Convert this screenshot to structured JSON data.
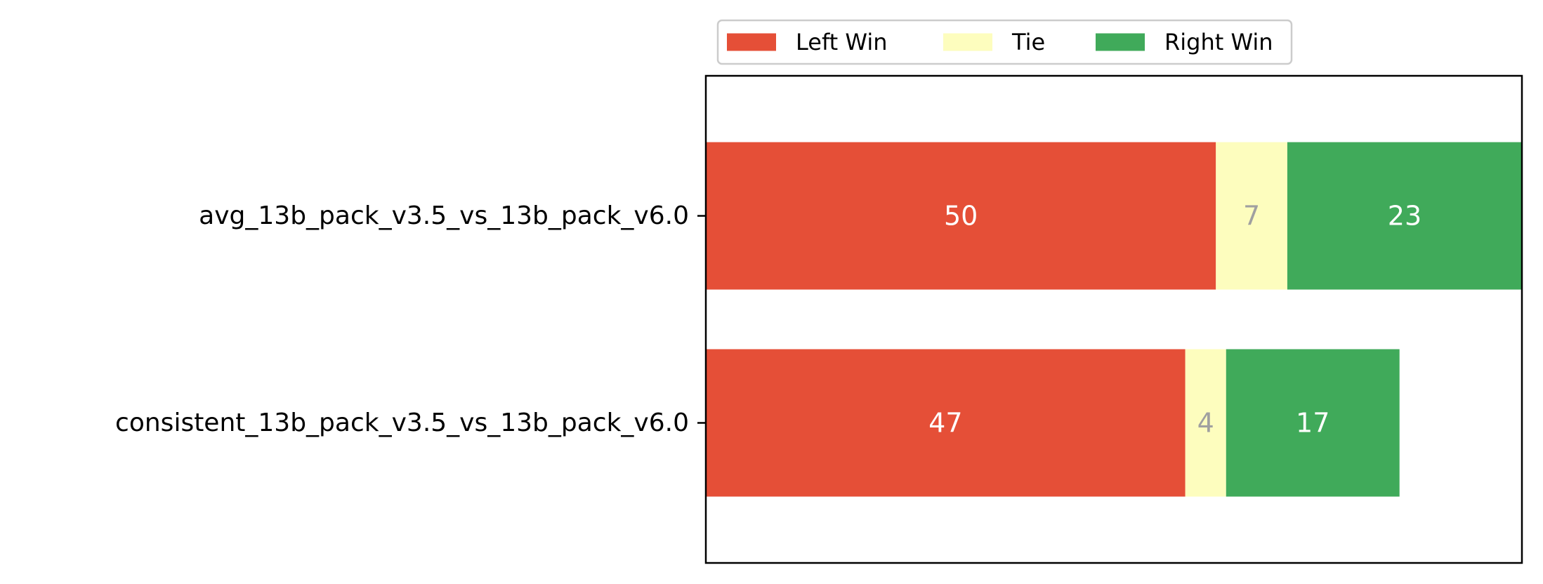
{
  "chart_data": {
    "type": "bar",
    "orientation": "horizontal",
    "stacked": true,
    "categories": [
      "avg_13b_pack_v3.5_vs_13b_pack_v6.0",
      "consistent_13b_pack_v3.5_vs_13b_pack_v6.0"
    ],
    "series": [
      {
        "name": "Left Win",
        "color": "#e54f37",
        "label_color": "#ffffff",
        "values": [
          50,
          47
        ]
      },
      {
        "name": "Tie",
        "color": "#fdfdbe",
        "label_color": "#a0a0a0",
        "values": [
          7,
          4
        ]
      },
      {
        "name": "Right Win",
        "color": "#40aa5a",
        "label_color": "#ffffff",
        "values": [
          23,
          17
        ]
      }
    ],
    "xlim": [
      0,
      80
    ],
    "x_ticks_visible": false,
    "legend_placement": "top-center",
    "grid": false,
    "title": "",
    "xlabel": "",
    "ylabel": ""
  }
}
